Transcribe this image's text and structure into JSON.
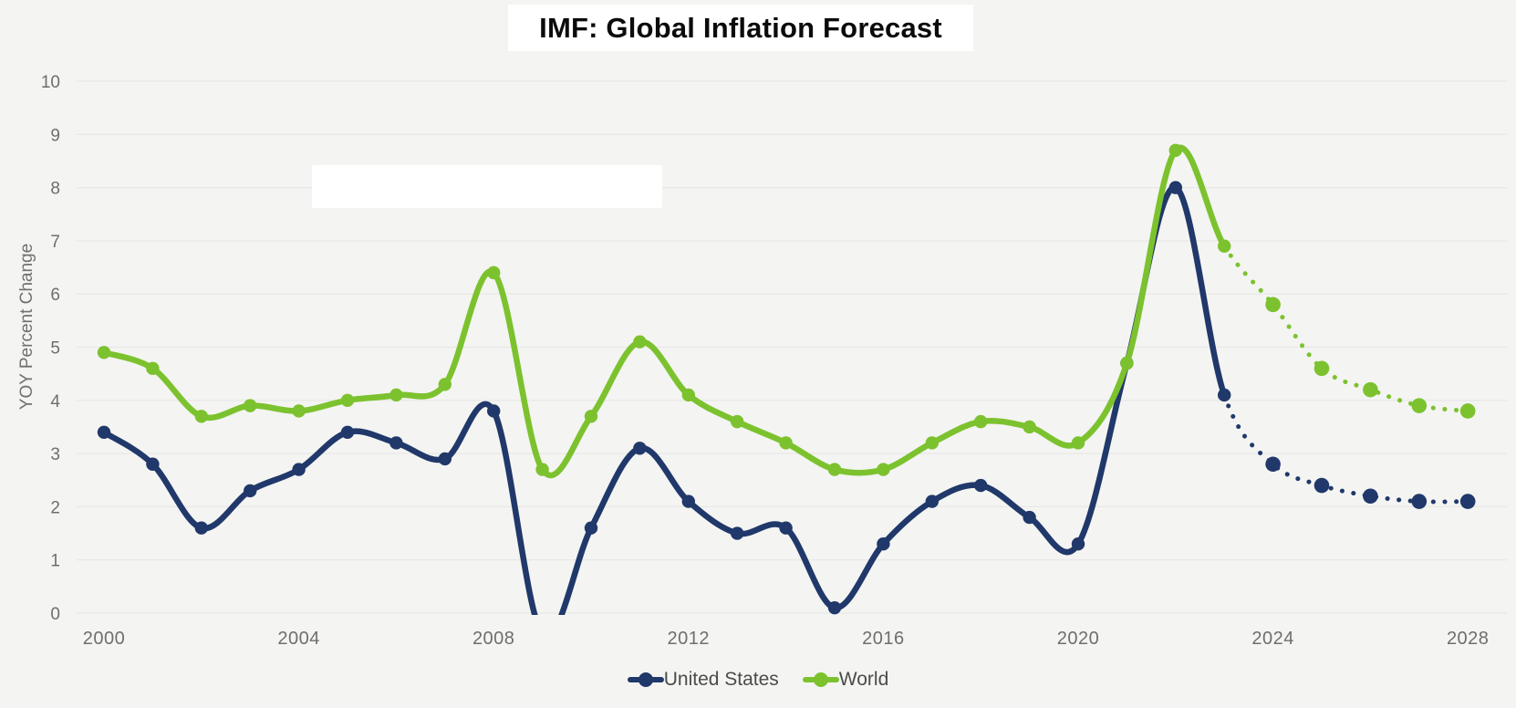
{
  "title": "IMF: Global Inflation Forecast",
  "y_axis": {
    "label": "YOY Percent Change",
    "ticks": [
      0,
      1,
      2,
      3,
      4,
      5,
      6,
      7,
      8,
      9,
      10
    ]
  },
  "x_axis": {
    "ticks": [
      2000,
      2004,
      2008,
      2012,
      2016,
      2020,
      2024,
      2028
    ]
  },
  "legend": {
    "items": [
      {
        "label": "United States",
        "color": "#20386a"
      },
      {
        "label": "World",
        "color": "#7cc22e"
      }
    ]
  },
  "colors": {
    "background": "#f4f4f2",
    "gridline": "#e8e8e6",
    "united_states": "#20386a",
    "world": "#7cc22e",
    "tick_text": "#6e6e6e",
    "legend_text": "#4b4b4b",
    "title_text": "#0b0b0b"
  },
  "chart_data": {
    "type": "line",
    "title": "IMF: Global Inflation Forecast",
    "xlabel": "",
    "ylabel": "YOY Percent Change",
    "ylim": [
      0,
      10
    ],
    "grid": "horizontal",
    "legend_position": "bottom",
    "line_style": "smooth spline with circular markers",
    "forecast_from_year": 2023,
    "forecast_style": "dotted",
    "us_2009_clipped_below_zero": true,
    "x": [
      2000,
      2001,
      2002,
      2003,
      2004,
      2005,
      2006,
      2007,
      2008,
      2009,
      2010,
      2011,
      2012,
      2013,
      2014,
      2015,
      2016,
      2017,
      2018,
      2019,
      2020,
      2021,
      2022,
      2023,
      2024,
      2025,
      2026,
      2027,
      2028
    ],
    "series": [
      {
        "name": "United States",
        "color": "#20386a",
        "values": [
          3.4,
          2.8,
          1.6,
          2.3,
          2.7,
          3.4,
          3.2,
          2.9,
          3.8,
          -0.4,
          1.6,
          3.1,
          2.1,
          1.5,
          1.6,
          0.1,
          1.3,
          2.1,
          2.4,
          1.8,
          1.3,
          4.7,
          8.0,
          4.1,
          2.8,
          2.4,
          2.2,
          2.1,
          2.1
        ]
      },
      {
        "name": "World",
        "color": "#7cc22e",
        "values": [
          4.9,
          4.6,
          3.7,
          3.9,
          3.8,
          4.0,
          4.1,
          4.3,
          6.4,
          2.7,
          3.7,
          5.1,
          4.1,
          3.6,
          3.2,
          2.7,
          2.7,
          3.2,
          3.6,
          3.5,
          3.2,
          4.7,
          8.7,
          6.9,
          5.8,
          4.6,
          4.2,
          3.9,
          3.8
        ]
      }
    ]
  }
}
